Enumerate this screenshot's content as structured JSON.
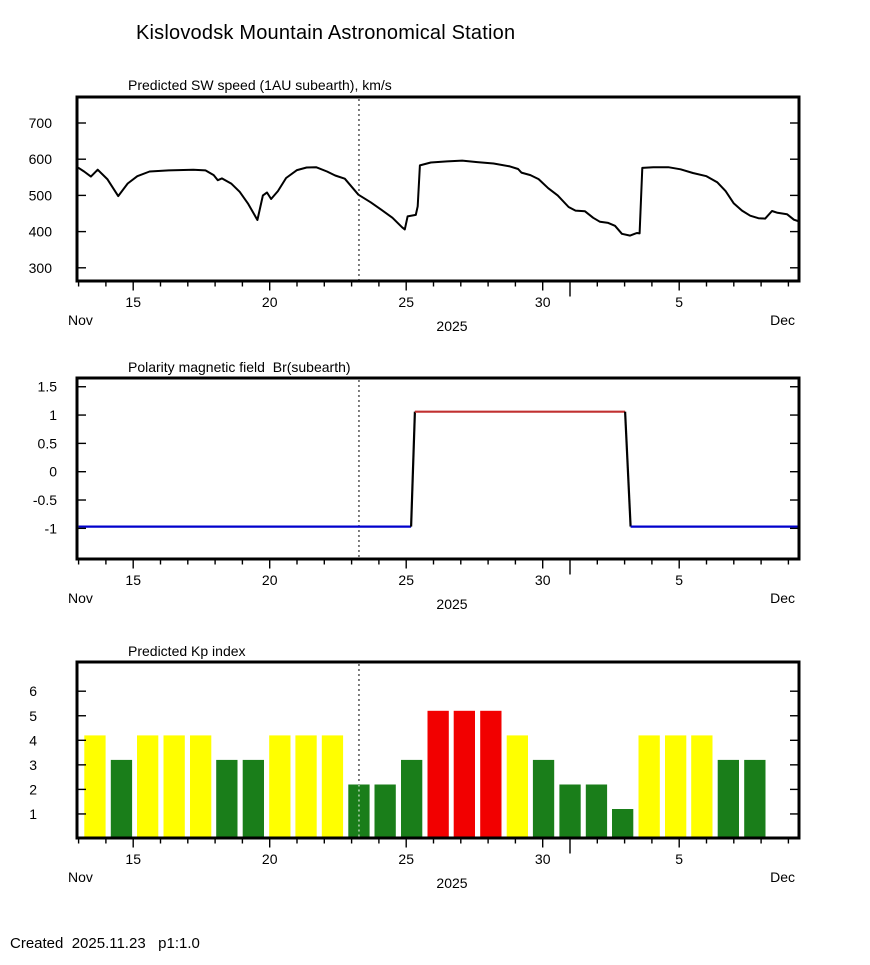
{
  "page_title": "Kislovodsk Mountain Astronomical Station",
  "footer": {
    "created_label": "Created  2025.11.23   p1:1.0"
  },
  "colors": {
    "axis_black": "#000000",
    "sw_line": "#000000",
    "kp_yellow": "#FFFF00",
    "kp_green": "#1A7E1A",
    "kp_red": "#F20000",
    "polarity_blue": "#0000CC",
    "polarity_red": "#C13030",
    "now_line": "#000000"
  },
  "x_axis": {
    "month_start": "Nov",
    "year": "2025",
    "month_end": "Dec",
    "xlim": [
      13.0,
      39.4
    ],
    "long_tick_day": 31,
    "now_day": 23.27,
    "day_tick_labels": [
      {
        "day": 15,
        "label": "15"
      },
      {
        "day": 20,
        "label": "20"
      },
      {
        "day": 25,
        "label": "25"
      },
      {
        "day": 30,
        "label": "30"
      },
      {
        "day": 35,
        "label": "5"
      }
    ]
  },
  "chart_data": [
    {
      "type": "line",
      "title": "Predicted SW speed (1AU subearth), km/s",
      "ylabel": "km/s",
      "yticks": [
        700,
        600,
        500,
        400,
        300
      ],
      "ylim": [
        263,
        772
      ],
      "points": [
        [
          13.0,
          576
        ],
        [
          13.2,
          566
        ],
        [
          13.45,
          552
        ],
        [
          13.7,
          571
        ],
        [
          14.05,
          545
        ],
        [
          14.45,
          498
        ],
        [
          14.8,
          533
        ],
        [
          15.15,
          553
        ],
        [
          15.6,
          566
        ],
        [
          16.3,
          569
        ],
        [
          17.2,
          571
        ],
        [
          17.65,
          569
        ],
        [
          17.95,
          556
        ],
        [
          18.1,
          542
        ],
        [
          18.25,
          547
        ],
        [
          18.6,
          532
        ],
        [
          18.9,
          510
        ],
        [
          19.2,
          478
        ],
        [
          19.45,
          445
        ],
        [
          19.55,
          432
        ],
        [
          19.75,
          500
        ],
        [
          19.9,
          508
        ],
        [
          20.05,
          490
        ],
        [
          20.3,
          512
        ],
        [
          20.6,
          548
        ],
        [
          21.0,
          570
        ],
        [
          21.35,
          577
        ],
        [
          21.7,
          578
        ],
        [
          22.1,
          566
        ],
        [
          22.4,
          555
        ],
        [
          22.75,
          546
        ],
        [
          23.25,
          502
        ],
        [
          23.7,
          481
        ],
        [
          24.1,
          460
        ],
        [
          24.5,
          438
        ],
        [
          24.85,
          412
        ],
        [
          24.95,
          406
        ],
        [
          25.05,
          442
        ],
        [
          25.35,
          446
        ],
        [
          25.42,
          470
        ],
        [
          25.5,
          583
        ],
        [
          25.9,
          591
        ],
        [
          26.5,
          594
        ],
        [
          27.05,
          596
        ],
        [
          27.6,
          592
        ],
        [
          28.2,
          588
        ],
        [
          28.8,
          580
        ],
        [
          29.1,
          573
        ],
        [
          29.22,
          563
        ],
        [
          29.55,
          556
        ],
        [
          29.85,
          545
        ],
        [
          30.2,
          520
        ],
        [
          30.55,
          500
        ],
        [
          30.95,
          468
        ],
        [
          31.2,
          458
        ],
        [
          31.55,
          456
        ],
        [
          31.85,
          438
        ],
        [
          32.1,
          427
        ],
        [
          32.4,
          424
        ],
        [
          32.65,
          416
        ],
        [
          32.9,
          394
        ],
        [
          33.2,
          389
        ],
        [
          33.45,
          396
        ],
        [
          33.55,
          395
        ],
        [
          33.65,
          576
        ],
        [
          34.05,
          578
        ],
        [
          34.6,
          578
        ],
        [
          35.05,
          572
        ],
        [
          35.5,
          562
        ],
        [
          36.0,
          553
        ],
        [
          36.4,
          536
        ],
        [
          36.7,
          512
        ],
        [
          37.0,
          478
        ],
        [
          37.3,
          458
        ],
        [
          37.6,
          444
        ],
        [
          37.9,
          437
        ],
        [
          38.15,
          436
        ],
        [
          38.4,
          457
        ],
        [
          38.6,
          452
        ],
        [
          38.95,
          448
        ],
        [
          39.2,
          433
        ],
        [
          39.4,
          428
        ]
      ]
    },
    {
      "type": "step",
      "title": "Polarity magnetic field  Br(subearth)",
      "yticks": [
        1.5,
        1,
        0.5,
        0,
        -0.5,
        -1
      ],
      "ylim": [
        -1.54,
        1.65
      ],
      "segments": [
        {
          "color": "blue",
          "points": [
            [
              13.0,
              -0.97
            ],
            [
              25.18,
              -0.97
            ]
          ]
        },
        {
          "color": "black",
          "points": [
            [
              25.18,
              -0.97
            ],
            [
              25.32,
              1.06
            ]
          ]
        },
        {
          "color": "red",
          "points": [
            [
              25.32,
              1.06
            ],
            [
              33.02,
              1.06
            ]
          ]
        },
        {
          "color": "black",
          "points": [
            [
              33.02,
              1.06
            ],
            [
              33.22,
              -0.97
            ]
          ]
        },
        {
          "color": "blue",
          "points": [
            [
              33.22,
              -0.97
            ],
            [
              39.4,
              -0.97
            ]
          ]
        }
      ]
    },
    {
      "type": "bar",
      "title": "Predicted Kp index",
      "yticks": [
        6,
        5,
        4,
        3,
        2,
        1
      ],
      "ylim": [
        0,
        7.2
      ],
      "bar_width_days": 0.78,
      "bars": [
        {
          "day": 13.6,
          "value": 4.2,
          "color": "yellow"
        },
        {
          "day": 14.57,
          "value": 3.2,
          "color": "green"
        },
        {
          "day": 15.53,
          "value": 4.2,
          "color": "yellow"
        },
        {
          "day": 16.5,
          "value": 4.2,
          "color": "yellow"
        },
        {
          "day": 17.47,
          "value": 4.2,
          "color": "yellow"
        },
        {
          "day": 18.43,
          "value": 3.2,
          "color": "green"
        },
        {
          "day": 19.4,
          "value": 3.2,
          "color": "green"
        },
        {
          "day": 20.37,
          "value": 4.2,
          "color": "yellow"
        },
        {
          "day": 21.33,
          "value": 4.2,
          "color": "yellow"
        },
        {
          "day": 22.3,
          "value": 4.2,
          "color": "yellow"
        },
        {
          "day": 23.27,
          "value": 2.2,
          "color": "green"
        },
        {
          "day": 24.23,
          "value": 2.2,
          "color": "green"
        },
        {
          "day": 25.2,
          "value": 3.2,
          "color": "green"
        },
        {
          "day": 26.17,
          "value": 5.2,
          "color": "red"
        },
        {
          "day": 27.13,
          "value": 5.2,
          "color": "red"
        },
        {
          "day": 28.1,
          "value": 5.2,
          "color": "red"
        },
        {
          "day": 29.07,
          "value": 4.2,
          "color": "yellow"
        },
        {
          "day": 30.03,
          "value": 3.2,
          "color": "green"
        },
        {
          "day": 31.0,
          "value": 2.2,
          "color": "green"
        },
        {
          "day": 31.97,
          "value": 2.2,
          "color": "green"
        },
        {
          "day": 32.93,
          "value": 1.2,
          "color": "green"
        },
        {
          "day": 33.9,
          "value": 4.2,
          "color": "yellow"
        },
        {
          "day": 34.87,
          "value": 4.2,
          "color": "yellow"
        },
        {
          "day": 35.83,
          "value": 4.2,
          "color": "yellow"
        },
        {
          "day": 36.8,
          "value": 3.2,
          "color": "green"
        },
        {
          "day": 37.77,
          "value": 3.2,
          "color": "green"
        }
      ]
    }
  ]
}
